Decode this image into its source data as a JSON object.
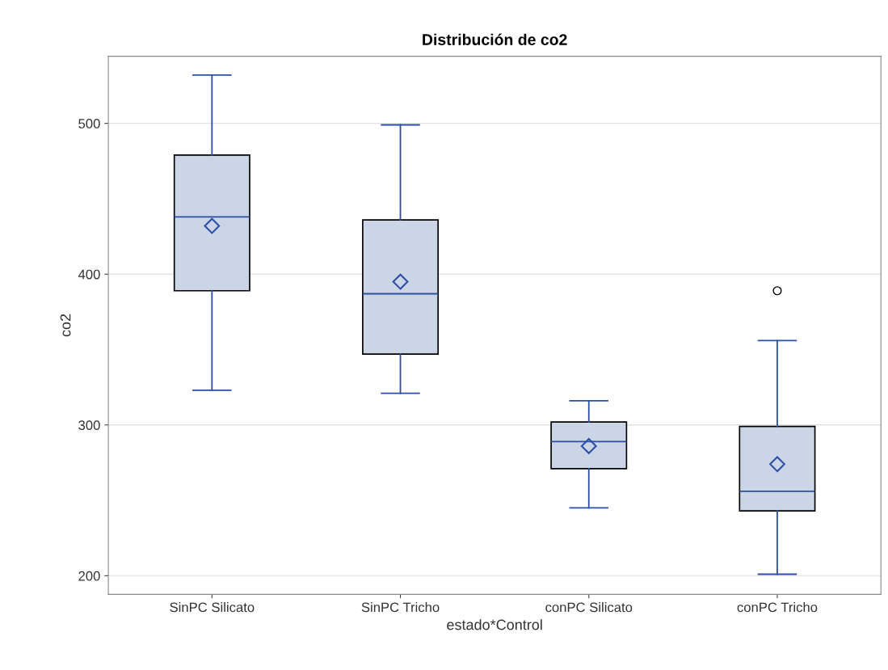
{
  "chart_data": {
    "type": "box",
    "title": "Distribución de co2",
    "xlabel": "estado*Control",
    "ylabel": "co2",
    "categories": [
      "SinPC Silicato",
      "SinPC Tricho",
      "conPC Silicato",
      "conPC Tricho"
    ],
    "boxes": [
      {
        "low": 323,
        "q1": 389,
        "median": 438,
        "q3": 479,
        "high": 532,
        "mean": 432
      },
      {
        "low": 321,
        "q1": 347,
        "median": 387,
        "q3": 436,
        "high": 499,
        "mean": 395
      },
      {
        "low": 245,
        "q1": 271,
        "median": 289,
        "q3": 302,
        "high": 316,
        "mean": 286
      },
      {
        "low": 201,
        "q1": 243,
        "median": 256,
        "q3": 299,
        "high": 356,
        "mean": 274,
        "outliers": [
          389
        ]
      }
    ],
    "color": "#cbd5e5",
    "ylim": [
      187.7,
      544.5
    ],
    "yticks": [
      200,
      300,
      400,
      500
    ],
    "grid": "y",
    "marker": "diamond"
  }
}
